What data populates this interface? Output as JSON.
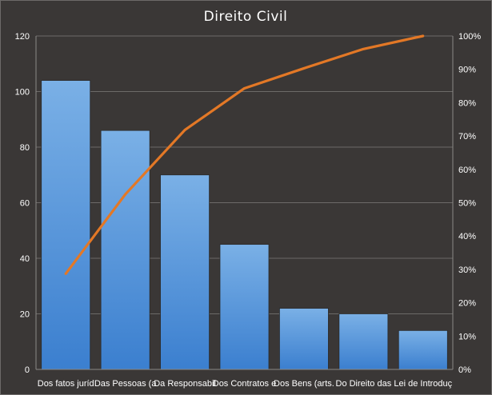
{
  "chart_data": {
    "type": "bar",
    "title": "Direito  Civil",
    "categories": [
      "Dos fatos jurídicos",
      "Das Pessoas (arts",
      "Da Responsabilidade",
      "Dos Contratos em",
      "Dos Bens (arts.",
      "Do Direito das",
      "Lei de Introdução"
    ],
    "category_labels": [
      "Dos fatos juríd",
      "Das Pessoas (a",
      "Da Responsabil",
      "Dos Contratos e",
      "Dos Bens (arts.",
      "Do Direito das",
      "Lei de Introduç"
    ],
    "series": [
      {
        "type": "bar",
        "axis": "left",
        "values": [
          104,
          86,
          70,
          45,
          22,
          20,
          14
        ]
      },
      {
        "type": "line",
        "axis": "right",
        "values": [
          28.7,
          52.5,
          71.8,
          84.3,
          90.3,
          96.1,
          100
        ]
      }
    ],
    "y_left": {
      "min": 0,
      "max": 120,
      "step": 20,
      "ticks": [
        "0",
        "20",
        "40",
        "60",
        "80",
        "100",
        "120"
      ]
    },
    "y_right": {
      "min": 0,
      "max": 100,
      "step": 10,
      "ticks": [
        "0%",
        "10%",
        "20%",
        "30%",
        "40%",
        "50%",
        "60%",
        "70%",
        "80%",
        "90%",
        "100%"
      ]
    },
    "grid": true,
    "legend": "none",
    "colors": {
      "background": "#3a3736",
      "bar_top": "#7ab0e6",
      "bar_bottom": "#3b7fcf",
      "line": "#e37826",
      "grid": "#6c6a68",
      "text": "#ffffff"
    }
  }
}
